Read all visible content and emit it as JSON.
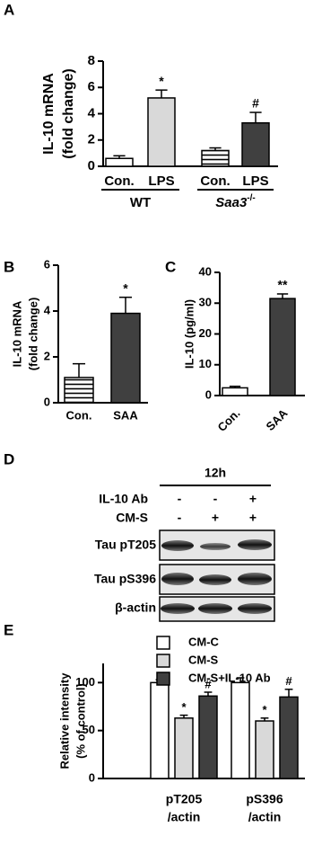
{
  "chart_data": [
    {
      "type": "bar",
      "panel": "A",
      "ylabel": [
        "IL-10 mRNA",
        "(fold change)"
      ],
      "categories": [
        "Con.",
        "LPS",
        "Con.",
        "LPS"
      ],
      "groups": [
        {
          "label": "WT"
        },
        {
          "label": "Saa3",
          "sup": "-/-"
        }
      ],
      "values": [
        0.6,
        5.2,
        1.2,
        3.3
      ],
      "errors": [
        0.2,
        0.6,
        0.2,
        0.8
      ],
      "colors": [
        "#ffffff",
        "#d9d9d9",
        "hatch",
        "#404040"
      ],
      "ylim": [
        0,
        8
      ],
      "yticks": [
        0,
        2,
        4,
        6,
        8
      ],
      "annotations": [
        {
          "index": 1,
          "text": "*"
        },
        {
          "index": 3,
          "text": "#"
        }
      ]
    },
    {
      "type": "bar",
      "panel": "B",
      "ylabel": [
        "IL-10 mRNA",
        "(fold change)"
      ],
      "categories": [
        "Con.",
        "SAA"
      ],
      "values": [
        1.1,
        3.9
      ],
      "errors": [
        0.6,
        0.7
      ],
      "colors": [
        "hatch",
        "#404040"
      ],
      "ylim": [
        0,
        6
      ],
      "yticks": [
        0,
        2,
        4,
        6
      ],
      "annotations": [
        {
          "index": 1,
          "text": "*"
        }
      ]
    },
    {
      "type": "bar",
      "panel": "C",
      "ylabel": [
        "IL-10 (pg/ml)"
      ],
      "categories": [
        "Con.",
        "SAA"
      ],
      "values": [
        2.5,
        31.5
      ],
      "errors": [
        0.5,
        1.5
      ],
      "colors": [
        "#ffffff",
        "#404040"
      ],
      "ylim": [
        0,
        40
      ],
      "yticks": [
        0,
        10,
        20,
        30,
        40
      ],
      "annotations": [
        {
          "index": 1,
          "text": "**"
        }
      ]
    },
    {
      "type": "grouped_bar",
      "panel": "E",
      "ylabel": [
        "Relative intensity",
        "(% of control)"
      ],
      "categories": [
        [
          "pT205",
          "/actin"
        ],
        [
          "pS396",
          "/actin"
        ]
      ],
      "series": [
        {
          "name": "CM-C",
          "color": "#ffffff",
          "values": [
            100,
            100
          ],
          "errors": [
            3,
            5
          ]
        },
        {
          "name": "CM-S",
          "color": "#d9d9d9",
          "values": [
            63,
            60
          ],
          "errors": [
            3,
            3
          ]
        },
        {
          "name": "CM-S+IL-10 Ab",
          "color": "#404040",
          "values": [
            86,
            85
          ],
          "errors": [
            4,
            8
          ]
        }
      ],
      "ylim": [
        0,
        120
      ],
      "yticks": [
        0,
        50,
        100
      ],
      "annotations": [
        {
          "series": 1,
          "index": 0,
          "text": "*"
        },
        {
          "series": 2,
          "index": 0,
          "text": "#"
        },
        {
          "series": 1,
          "index": 1,
          "text": "*"
        },
        {
          "series": 2,
          "index": 1,
          "text": "#"
        }
      ]
    }
  ],
  "blot": {
    "panel": "D",
    "time": "12h",
    "conditions": [
      {
        "label": "IL-10 Ab",
        "signs": [
          "-",
          "-",
          "+"
        ]
      },
      {
        "label": "CM-S",
        "signs": [
          "-",
          "+",
          "+"
        ]
      }
    ],
    "rows": [
      "Tau pT205",
      "Tau pS396",
      "β-actin"
    ]
  }
}
